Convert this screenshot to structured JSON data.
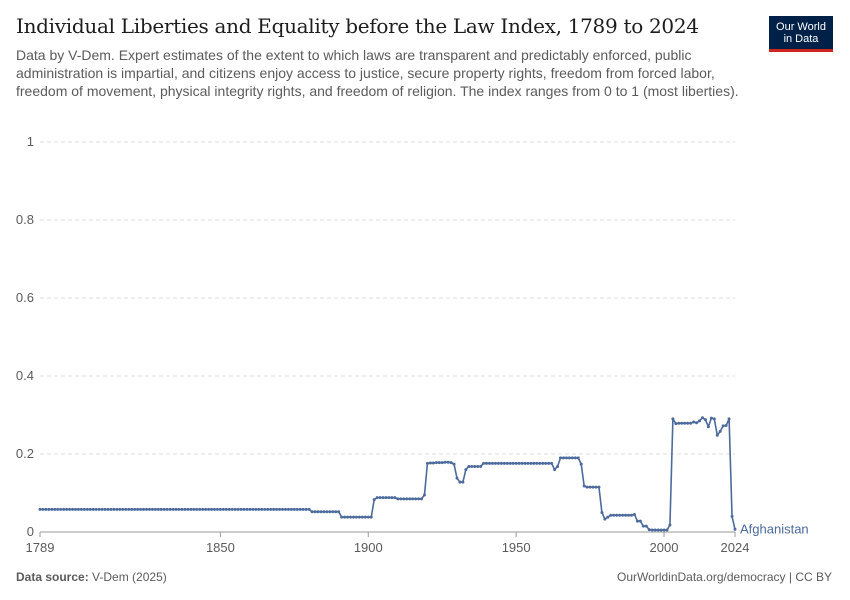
{
  "header": {
    "title": "Individual Liberties and Equality before the Law Index, 1789 to 2024",
    "subtitle": "Data by V-Dem. Expert estimates of the extent to which laws are transparent and predictably enforced, public administration is impartial, and citizens enjoy access to justice, secure property rights, freedom from forced labor, freedom of movement, physical integrity rights, and freedom of religion. The index ranges from 0 to 1 (most liberties).",
    "logo_line1": "Our World",
    "logo_line2": "in Data"
  },
  "footer": {
    "source_label": "Data source:",
    "source_value": "V-Dem (2025)",
    "right": "OurWorldinData.org/democracy | CC BY"
  },
  "colors": {
    "series": "#4c6a9c",
    "grid": "#dddddd",
    "axis": "#5b5b5b",
    "title": "#1d1d1d",
    "logo_bg": "#002147",
    "logo_accent": "#ce261e"
  },
  "chart_data": {
    "type": "line",
    "title": "Individual Liberties and Equality before the Law Index, 1789 to 2024",
    "xlabel": "",
    "ylabel": "",
    "xlim": [
      1789,
      2024
    ],
    "ylim": [
      0,
      1
    ],
    "x_ticks": [
      1789,
      1850,
      1900,
      1950,
      2000,
      2024
    ],
    "y_ticks": [
      0,
      0.2,
      0.4,
      0.6,
      0.8,
      1
    ],
    "y_tick_labels": [
      "0",
      "0.2",
      "0.4",
      "0.6",
      "0.8",
      "1"
    ],
    "grid": true,
    "legend": "end-of-line label",
    "series": [
      {
        "name": "Afghanistan",
        "points": [
          [
            1789,
            0.058
          ],
          [
            1880,
            0.058
          ],
          [
            1881,
            0.052
          ],
          [
            1890,
            0.052
          ],
          [
            1891,
            0.038
          ],
          [
            1901,
            0.038
          ],
          [
            1902,
            0.083
          ],
          [
            1903,
            0.088
          ],
          [
            1909,
            0.088
          ],
          [
            1910,
            0.085
          ],
          [
            1918,
            0.085
          ],
          [
            1919,
            0.095
          ],
          [
            1920,
            0.176
          ],
          [
            1921,
            0.177
          ],
          [
            1923,
            0.178
          ],
          [
            1926,
            0.179
          ],
          [
            1928,
            0.178
          ],
          [
            1929,
            0.174
          ],
          [
            1930,
            0.138
          ],
          [
            1931,
            0.128
          ],
          [
            1932,
            0.128
          ],
          [
            1933,
            0.16
          ],
          [
            1934,
            0.168
          ],
          [
            1938,
            0.168
          ],
          [
            1939,
            0.176
          ],
          [
            1962,
            0.176
          ],
          [
            1963,
            0.16
          ],
          [
            1964,
            0.168
          ],
          [
            1965,
            0.19
          ],
          [
            1971,
            0.19
          ],
          [
            1972,
            0.174
          ],
          [
            1973,
            0.118
          ],
          [
            1974,
            0.115
          ],
          [
            1978,
            0.115
          ],
          [
            1979,
            0.05
          ],
          [
            1980,
            0.033
          ],
          [
            1981,
            0.038
          ],
          [
            1982,
            0.043
          ],
          [
            1989,
            0.043
          ],
          [
            1990,
            0.045
          ],
          [
            1991,
            0.028
          ],
          [
            1993,
            0.015
          ],
          [
            1995,
            0.006
          ],
          [
            1996,
            0.005
          ],
          [
            2001,
            0.005
          ],
          [
            2002,
            0.018
          ],
          [
            2003,
            0.29
          ],
          [
            2004,
            0.278
          ],
          [
            2005,
            0.279
          ],
          [
            2009,
            0.279
          ],
          [
            2010,
            0.282
          ],
          [
            2011,
            0.28
          ],
          [
            2012,
            0.285
          ],
          [
            2013,
            0.293
          ],
          [
            2014,
            0.288
          ],
          [
            2015,
            0.27
          ],
          [
            2016,
            0.292
          ],
          [
            2017,
            0.29
          ],
          [
            2018,
            0.248
          ],
          [
            2019,
            0.258
          ],
          [
            2020,
            0.272
          ],
          [
            2021,
            0.273
          ],
          [
            2022,
            0.29
          ],
          [
            2023,
            0.04
          ],
          [
            2024,
            0.007
          ]
        ]
      }
    ]
  }
}
